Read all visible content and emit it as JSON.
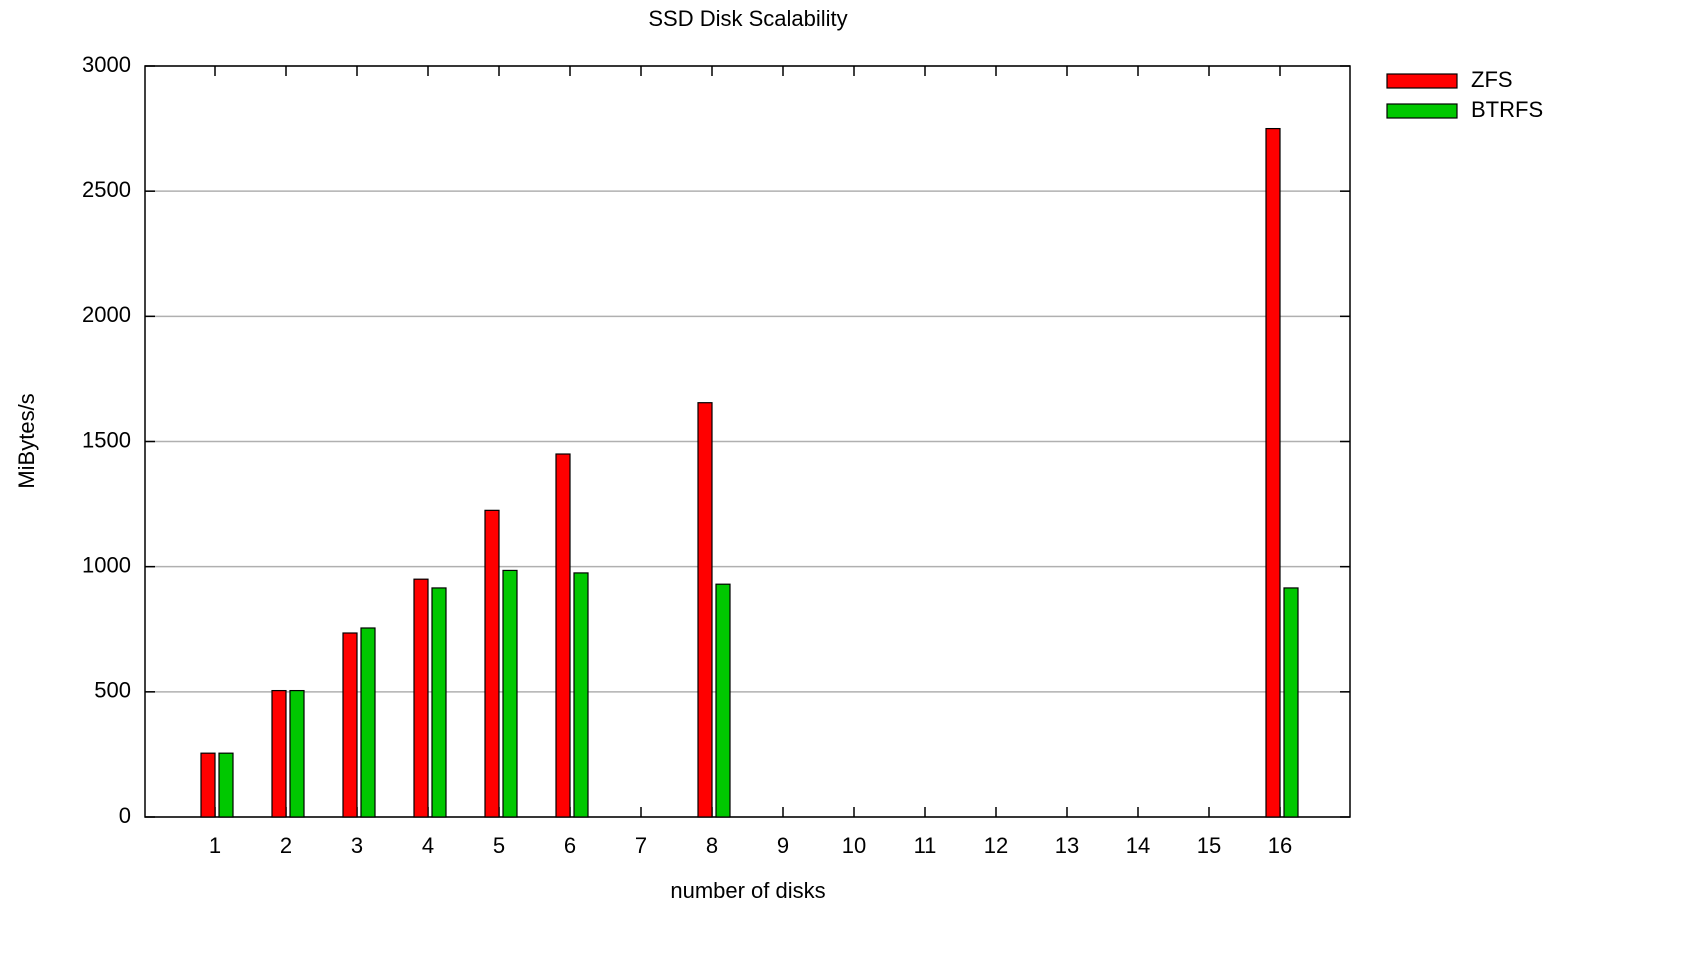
{
  "chart_data": {
    "type": "bar",
    "title": "SSD Disk Scalability",
    "x_label": "number of disks",
    "y_label": "MiBytes/s",
    "categories": [
      "1",
      "2",
      "3",
      "4",
      "5",
      "6",
      "7",
      "8",
      "9",
      "10",
      "11",
      "12",
      "13",
      "14",
      "15",
      "16"
    ],
    "series": [
      {
        "name": "ZFS",
        "color": "#ff0000",
        "values": [
          255,
          505,
          735,
          950,
          1225,
          1450,
          0,
          1655,
          0,
          0,
          0,
          0,
          0,
          0,
          0,
          2750
        ]
      },
      {
        "name": "BTRFS",
        "color": "#00c800",
        "values": [
          255,
          505,
          755,
          915,
          985,
          975,
          0,
          930,
          0,
          0,
          0,
          0,
          0,
          0,
          0,
          915
        ]
      }
    ],
    "ylim": [
      0,
      3000
    ],
    "yticks": [
      0,
      500,
      1000,
      1500,
      2000,
      2500,
      3000
    ],
    "grid": true,
    "legend": "top-right"
  }
}
